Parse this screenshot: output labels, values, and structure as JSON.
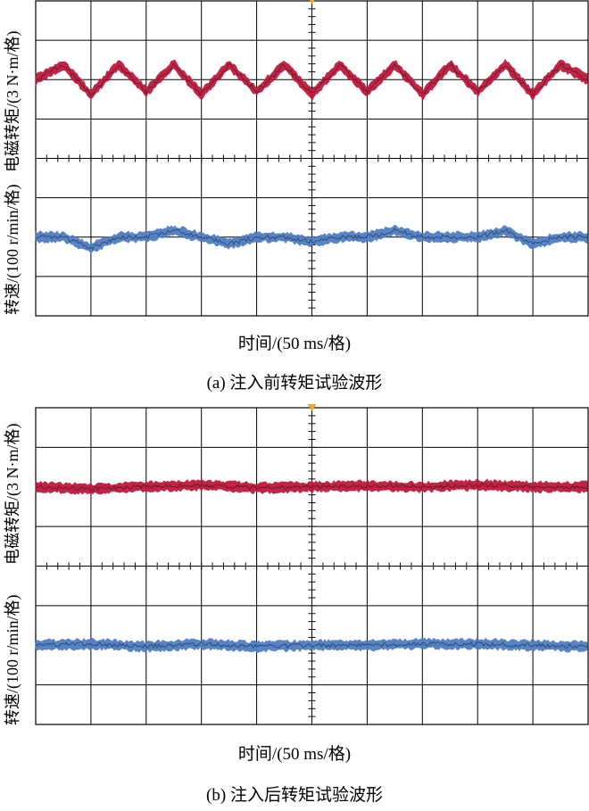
{
  "chart_data": [
    {
      "type": "line",
      "caption": "(a) 注入前转矩试验波形",
      "xlabel": "时间/(50 ms/格)",
      "ylabel_top": "电磁转矩/(3 N·m/格)",
      "ylabel_bottom": "转速/(100 r/min/格)",
      "grid": true,
      "divisions": {
        "x": 10,
        "y": 8
      },
      "x_unit_per_div": "50 ms",
      "series": [
        {
          "name": "电磁转矩/(3 N·m/格)",
          "color": "#c0183c",
          "x": [
            0,
            25,
            50,
            75,
            100,
            125,
            150,
            175,
            200,
            225,
            250,
            275,
            300,
            325,
            350,
            375,
            400,
            425,
            450,
            475,
            500
          ],
          "values": [
            0,
            1.5,
            -1.5,
            1.5,
            -1.2,
            1.5,
            -1.5,
            1.5,
            -1.2,
            1.5,
            -1.5,
            1.5,
            -1.2,
            1.5,
            -1.5,
            1.5,
            -1.2,
            1.5,
            -1.5,
            1.5,
            0
          ]
        },
        {
          "name": "转速/(100 r/min/格)",
          "color": "#4f7ec4",
          "x": [
            0,
            25,
            50,
            75,
            100,
            125,
            150,
            175,
            200,
            225,
            250,
            275,
            300,
            325,
            350,
            375,
            400,
            425,
            450,
            475,
            500
          ],
          "values": [
            0,
            0,
            -25,
            0,
            0,
            15,
            0,
            -15,
            0,
            0,
            -10,
            0,
            0,
            15,
            0,
            0,
            0,
            15,
            -15,
            0,
            0
          ]
        }
      ]
    },
    {
      "type": "line",
      "caption": "(b) 注入后转矩试验波形",
      "xlabel": "时间/(50 ms/格)",
      "ylabel_top": "电磁转矩/(3 N·m/格)",
      "ylabel_bottom": "转速/(100 r/min/格)",
      "grid": true,
      "divisions": {
        "x": 10,
        "y": 8
      },
      "x_unit_per_div": "50 ms",
      "series": [
        {
          "name": "电磁转矩/(3 N·m/格)",
          "color": "#c0183c",
          "x": [
            0,
            50,
            100,
            150,
            200,
            250,
            300,
            350,
            400,
            450,
            500
          ],
          "values": [
            0,
            -0.2,
            0,
            0.2,
            -0.1,
            0,
            0.1,
            0,
            0.2,
            0,
            0
          ]
        },
        {
          "name": "转速/(100 r/min/格)",
          "color": "#4f7ec4",
          "x": [
            0,
            50,
            100,
            150,
            200,
            250,
            300,
            350,
            400,
            450,
            500
          ],
          "values": [
            0,
            3,
            -3,
            3,
            -3,
            0,
            0,
            3,
            3,
            0,
            -3
          ]
        }
      ]
    }
  ]
}
